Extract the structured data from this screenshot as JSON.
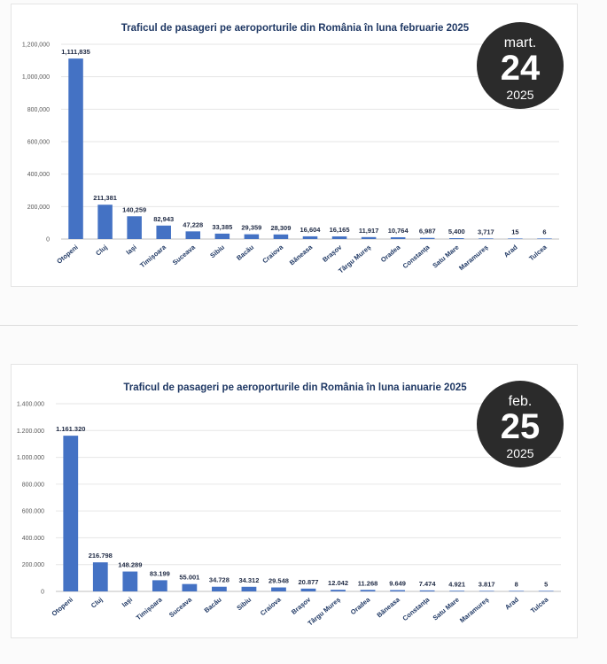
{
  "chart_data": [
    {
      "type": "bar",
      "title": "Traficul de pasageri pe aeroporturile din România în luna februarie 2025",
      "categories": [
        "Otopeni",
        "Cluj",
        "Iași",
        "Timișoara",
        "Suceava",
        "Sibiu",
        "Bacău",
        "Craiova",
        "Băneasa",
        "Brașov",
        "Târgu Mureș",
        "Oradea",
        "Constanța",
        "Satu Mare",
        "Maramureș",
        "Arad",
        "Tulcea"
      ],
      "values": [
        1111835,
        211381,
        140259,
        82943,
        47228,
        33385,
        29359,
        28309,
        16604,
        16165,
        11917,
        10764,
        6987,
        5400,
        3717,
        15,
        6
      ],
      "value_labels": [
        "1,111,835",
        "211,381",
        "140,259",
        "82,943",
        "47,228",
        "33,385",
        "29,359",
        "28,309",
        "16,604",
        "16,165",
        "11,917",
        "10,764",
        "6,987",
        "5,400",
        "3,717",
        "15",
        "6"
      ],
      "y_ticks": [
        0,
        200000,
        400000,
        600000,
        800000,
        1000000,
        1200000
      ],
      "y_tick_labels": [
        "0",
        "200,000",
        "400,000",
        "600,000",
        "800,000",
        "1,000,000",
        "1,200,000"
      ],
      "ylim": [
        0,
        1200000
      ],
      "grid": true,
      "bar_color": "#4472c4"
    },
    {
      "type": "bar",
      "title": "Traficul de pasageri pe aeroporturile din România în luna ianuarie 2025",
      "categories": [
        "Otopeni",
        "Cluj",
        "Iași",
        "Timișoara",
        "Suceava",
        "Bacău",
        "Sibiu",
        "Craiova",
        "Brașov",
        "Târgu Mureș",
        "Oradea",
        "Băneasa",
        "Constanța",
        "Satu Mare",
        "Maramureș",
        "Arad",
        "Tulcea"
      ],
      "values": [
        1161320,
        216798,
        148289,
        83199,
        55001,
        34728,
        34312,
        29548,
        20877,
        12042,
        11268,
        9649,
        7474,
        4921,
        3817,
        8,
        5
      ],
      "value_labels": [
        "1.161.320",
        "216.798",
        "148.289",
        "83.199",
        "55.001",
        "34.728",
        "34.312",
        "29.548",
        "20.877",
        "12.042",
        "11.268",
        "9.649",
        "7.474",
        "4.921",
        "3.817",
        "8",
        "5"
      ],
      "y_ticks": [
        0,
        200000,
        400000,
        600000,
        800000,
        1000000,
        1200000,
        1400000
      ],
      "y_tick_labels": [
        "0",
        "200.000",
        "400.000",
        "600.000",
        "800.000",
        "1.000.000",
        "1.200.000",
        "1.400.000"
      ],
      "ylim": [
        0,
        1400000
      ],
      "grid": true,
      "bar_color": "#4472c4"
    }
  ],
  "badges": [
    {
      "month": "mart.",
      "day": "24",
      "year": "2025",
      "color": "#2b2b2b"
    },
    {
      "month": "feb.",
      "day": "25",
      "year": "2025",
      "color": "#2b2b2b"
    }
  ]
}
